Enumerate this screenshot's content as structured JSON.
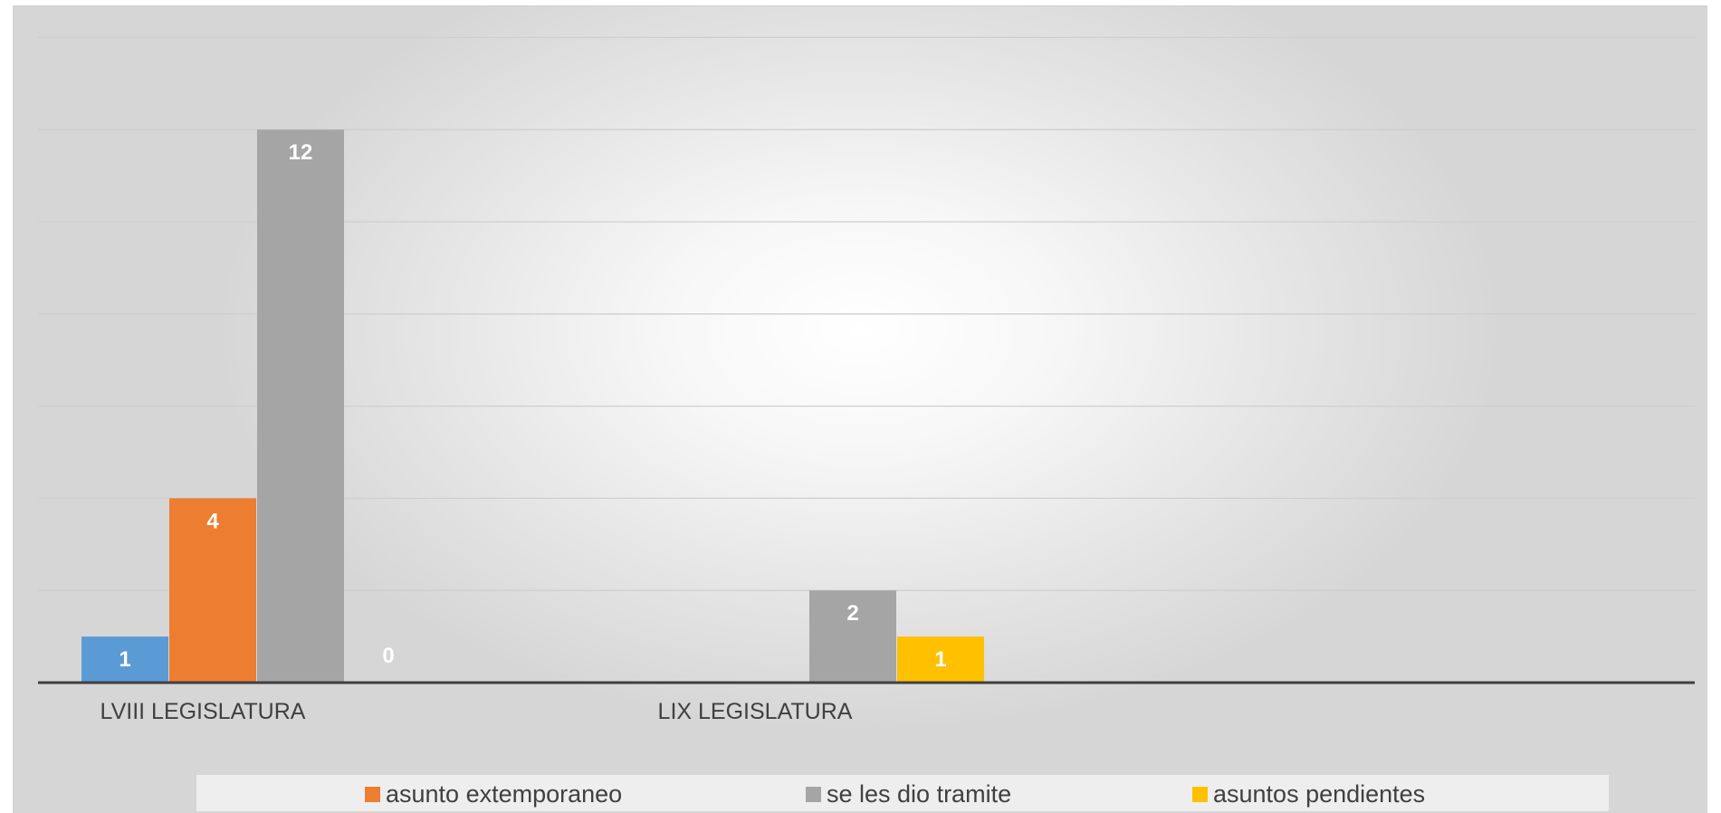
{
  "chart_data": {
    "type": "bar",
    "categories": [
      "LVIII LEGISLATURA",
      "LIX LEGISLATURA",
      ""
    ],
    "series": [
      {
        "name": "",
        "values": [
          1,
          null,
          null
        ],
        "color": "#5B9BD5",
        "labels": [
          "1",
          "",
          ""
        ]
      },
      {
        "name": "asunto extemporaneo",
        "values": [
          4,
          null,
          null
        ],
        "color": "#ED7D31",
        "labels": [
          "4",
          "",
          ""
        ]
      },
      {
        "name": "se les dio tramite",
        "values": [
          12,
          2,
          null
        ],
        "color": "#A5A5A5",
        "labels": [
          "12",
          "2",
          ""
        ]
      },
      {
        "name": "asuntos pendientes",
        "values": [
          0,
          1,
          null
        ],
        "color": "#FFC000",
        "labels": [
          "0",
          "1",
          ""
        ]
      }
    ],
    "ylim": [
      0,
      14
    ],
    "grid": true,
    "legend": "bottom",
    "title": "",
    "xlabel": "",
    "ylabel": ""
  },
  "legend": {
    "items": [
      {
        "label": "asunto extemporaneo",
        "color": "#ED7D31"
      },
      {
        "label": "se les dio tramite",
        "color": "#A5A5A5"
      },
      {
        "label": "asuntos pendientes",
        "color": "#FFC000"
      }
    ]
  }
}
